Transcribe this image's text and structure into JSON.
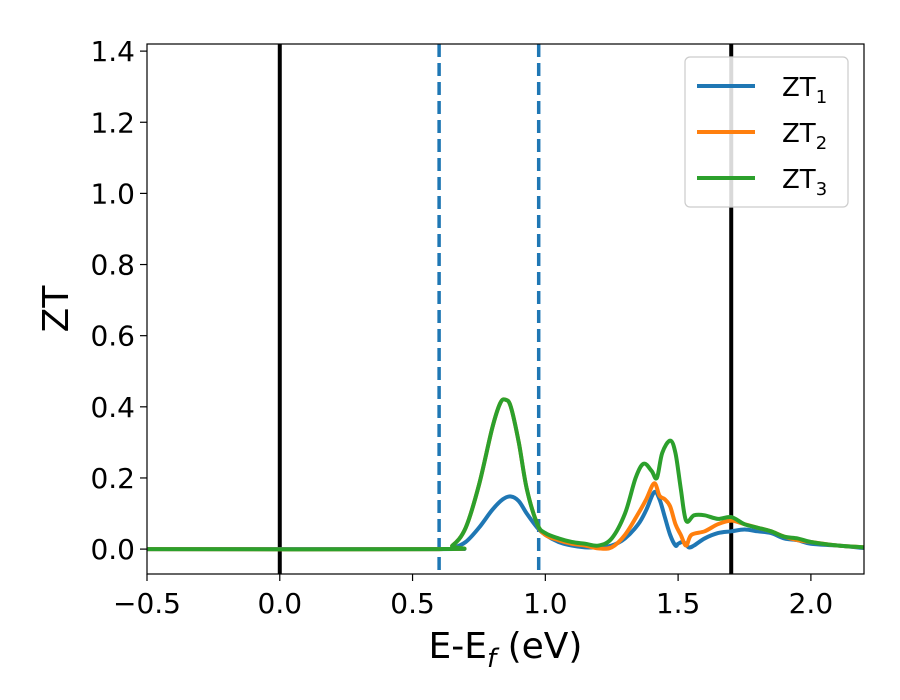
{
  "chart_data": {
    "type": "line",
    "xlabel": "E-E",
    "xlabel_sub": "f",
    "xlabel_unit": " (eV)",
    "ylabel": "ZT",
    "xlim": [
      -0.5,
      2.2
    ],
    "ylim": [
      -0.07,
      1.42
    ],
    "xticks": [
      -0.5,
      0.0,
      0.5,
      1.0,
      1.5,
      2.0
    ],
    "xtick_labels": [
      "−0.5",
      "0.0",
      "0.5",
      "1.0",
      "1.5",
      "2.0"
    ],
    "yticks": [
      0.0,
      0.2,
      0.4,
      0.6,
      0.8,
      1.0,
      1.2,
      1.4
    ],
    "ytick_labels": [
      "0.0",
      "0.2",
      "0.4",
      "0.6",
      "0.8",
      "1.0",
      "1.2",
      "1.4"
    ],
    "grid": false,
    "legend_position": "top-right",
    "vlines": [
      {
        "x": 0.0,
        "style": "solid",
        "color": "#000000"
      },
      {
        "x": 1.7,
        "style": "solid",
        "color": "#000000"
      },
      {
        "x": 0.6,
        "style": "dashed",
        "color": "#1f77b4"
      },
      {
        "x": 0.975,
        "style": "dashed",
        "color": "#1f77b4"
      }
    ],
    "series": [
      {
        "name": "ZT",
        "name_sub": "1",
        "color": "#1f77b4",
        "x": [
          -0.5,
          0.6,
          0.65,
          0.7,
          0.75,
          0.8,
          0.84,
          0.87,
          0.9,
          0.93,
          0.97,
          1.0,
          1.05,
          1.1,
          1.15,
          1.2,
          1.25,
          1.3,
          1.35,
          1.38,
          1.41,
          1.43,
          1.45,
          1.47,
          1.49,
          1.5,
          1.52,
          1.54,
          1.56,
          1.6,
          1.65,
          1.7,
          1.75,
          1.8,
          1.85,
          1.9,
          1.95,
          2.0,
          2.1,
          2.2
        ],
        "y": [
          0.0,
          0.0,
          0.003,
          0.02,
          0.06,
          0.11,
          0.14,
          0.148,
          0.135,
          0.1,
          0.06,
          0.04,
          0.02,
          0.01,
          0.005,
          0.005,
          0.01,
          0.03,
          0.07,
          0.11,
          0.16,
          0.14,
          0.09,
          0.04,
          0.01,
          0.015,
          0.02,
          0.005,
          0.01,
          0.03,
          0.045,
          0.05,
          0.055,
          0.05,
          0.045,
          0.03,
          0.025,
          0.015,
          0.01,
          0.003
        ]
      },
      {
        "name": "ZT",
        "name_sub": "2",
        "color": "#ff7f0e",
        "x": [
          -0.5,
          0.6,
          0.65,
          0.7,
          0.75,
          0.8,
          0.83,
          0.85,
          0.87,
          0.9,
          0.93,
          0.97,
          1.0,
          1.05,
          1.1,
          1.15,
          1.2,
          1.25,
          1.3,
          1.35,
          1.38,
          1.41,
          1.43,
          1.45,
          1.47,
          1.49,
          1.51,
          1.53,
          1.55,
          1.6,
          1.65,
          1.7,
          1.75,
          1.8,
          1.85,
          1.9,
          1.95,
          2.0,
          2.1,
          2.2
        ],
        "y": [
          0.0,
          0.0,
          0.01,
          0.06,
          0.18,
          0.34,
          0.41,
          0.42,
          0.4,
          0.3,
          0.17,
          0.07,
          0.04,
          0.025,
          0.015,
          0.01,
          0.002,
          0.005,
          0.04,
          0.1,
          0.14,
          0.185,
          0.15,
          0.14,
          0.12,
          0.07,
          0.04,
          0.01,
          0.04,
          0.05,
          0.07,
          0.08,
          0.07,
          0.06,
          0.05,
          0.035,
          0.025,
          0.02,
          0.01,
          0.005
        ]
      },
      {
        "name": "ZT",
        "name_sub": "3",
        "color": "#2ca02c",
        "x": [
          -0.5,
          0.6,
          0.65,
          0.7,
          0.75,
          0.8,
          0.83,
          0.85,
          0.87,
          0.9,
          0.93,
          0.97,
          1.0,
          1.05,
          1.1,
          1.15,
          1.2,
          1.25,
          1.3,
          1.34,
          1.37,
          1.4,
          1.42,
          1.44,
          1.47,
          1.49,
          1.51,
          1.53,
          1.56,
          1.6,
          1.65,
          1.7,
          1.75,
          1.8,
          1.85,
          1.9,
          1.95,
          2.0,
          2.1,
          2.2
        ],
        "y": [
          0.0,
          0.0,
          0.01,
          0.06,
          0.18,
          0.34,
          0.41,
          0.42,
          0.4,
          0.3,
          0.17,
          0.07,
          0.045,
          0.03,
          0.02,
          0.015,
          0.01,
          0.03,
          0.1,
          0.2,
          0.24,
          0.22,
          0.2,
          0.27,
          0.305,
          0.27,
          0.17,
          0.08,
          0.095,
          0.095,
          0.085,
          0.09,
          0.07,
          0.06,
          0.05,
          0.035,
          0.03,
          0.02,
          0.01,
          0.005
        ]
      }
    ]
  }
}
